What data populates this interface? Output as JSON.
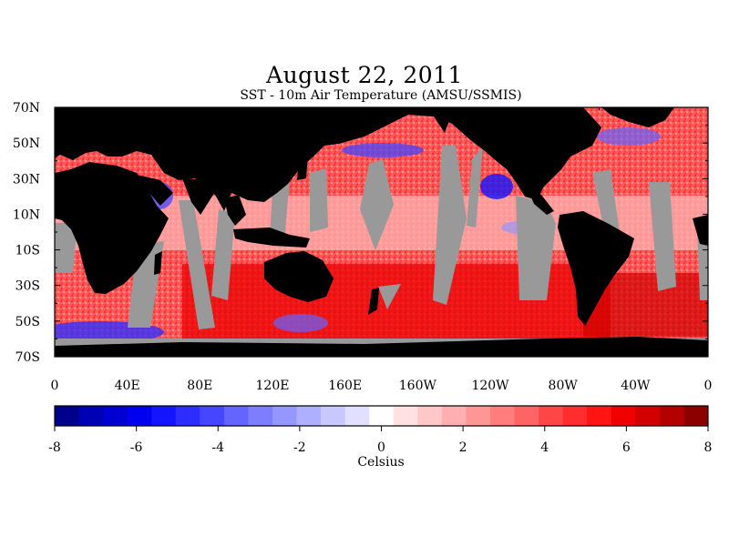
{
  "title": "August 22, 2011",
  "subtitle": "SST - 10m Air Temperature (AMSU/SSMIS)",
  "map": {
    "lat_labels": [
      "70N",
      "50N",
      "30N",
      "10N",
      "10S",
      "30S",
      "50S",
      "70S"
    ],
    "lon_labels": [
      "0",
      "40E",
      "80E",
      "120E",
      "160E",
      "160W",
      "120W",
      "80W",
      "40W",
      "0"
    ],
    "colors": {
      "land": "#000000",
      "no_data": "#999999",
      "frame": "#000000"
    }
  },
  "colorbar": {
    "tick_labels": [
      "-8",
      "-6",
      "-4",
      "-2",
      "0",
      "2",
      "4",
      "6",
      "8"
    ],
    "units": "Celsius",
    "min": -8,
    "max": 8,
    "colors": [
      "#00008c",
      "#0000b4",
      "#0000d2",
      "#0000f0",
      "#1414ff",
      "#2d2dff",
      "#4646ff",
      "#6464ff",
      "#7d7dff",
      "#9696ff",
      "#afafff",
      "#c8c8ff",
      "#e1e1ff",
      "#ffffff",
      "#ffe1e1",
      "#ffc8c8",
      "#ffafaf",
      "#ff9696",
      "#ff7d7d",
      "#ff6464",
      "#ff4646",
      "#ff2d2d",
      "#ff1414",
      "#f00000",
      "#d20000",
      "#b40000",
      "#8c0000"
    ]
  }
}
